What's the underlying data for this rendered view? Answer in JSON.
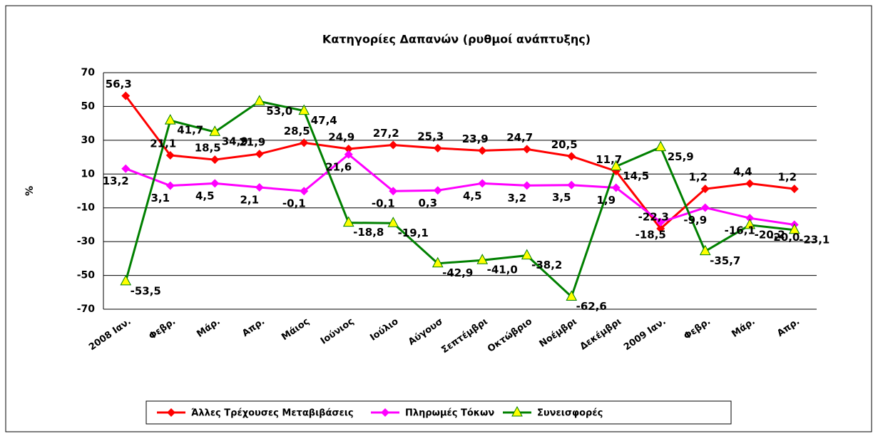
{
  "chart_data": {
    "type": "line",
    "title": "Κατηγορίες Δαπανών (ρυθμοί ανάπτυξης)",
    "y_label": "%",
    "categories": [
      "2008 Ιαν.",
      "Φεβρ.",
      "Μάρ.",
      "Απρ.",
      "Μάιος",
      "Ιούνιος",
      "Ιούλιο",
      "Αύγουσ",
      "Σεπτέμβρι",
      "Οκτώβριο",
      "Νοέμβρι",
      "Δεκέμβρι",
      "2009 Ιαν.",
      "Φεβρ.",
      "Μάρ.",
      "Απρ."
    ],
    "series": [
      {
        "name": "Άλλες Τρέχουσες Μεταβιβάσεις",
        "color": "#ff0000",
        "marker": "diamond",
        "marker_color": "#ff0000",
        "values": [
          56.3,
          21.1,
          18.5,
          21.9,
          28.5,
          24.9,
          27.2,
          25.3,
          23.9,
          24.7,
          20.5,
          11.7,
          -22.3,
          1.2,
          4.4,
          1.2
        ],
        "value_labels": [
          "56,3",
          "21,1",
          "18,5",
          "21,9",
          "28,5",
          "24,9",
          "27,2",
          "25,3",
          "23,9",
          "24,7",
          "20,5",
          "11,7",
          "-22,3",
          "1,2",
          "4,4",
          "1,2"
        ]
      },
      {
        "name": "Πληρωμές Τόκων",
        "color": "#ff00ff",
        "marker": "diamond",
        "marker_color": "#ff00ff",
        "values": [
          13.2,
          3.1,
          4.5,
          2.1,
          -0.1,
          21.6,
          -0.1,
          0.3,
          4.5,
          3.2,
          3.5,
          1.9,
          -18.5,
          -9.9,
          -16.1,
          -20.0
        ],
        "value_labels": [
          "13,2",
          "3,1",
          "4,5",
          "2,1",
          "-0,1",
          "21,6",
          "-0,1",
          "0,3",
          "4,5",
          "3,2",
          "3,5",
          "1,9",
          "-18,5",
          "-9,9",
          "-16,1",
          "-20,0"
        ]
      },
      {
        "name": "Συνεισφορές",
        "color": "#008000",
        "marker": "triangle",
        "marker_color": "#ffff00",
        "values": [
          -53.5,
          41.7,
          34.9,
          53.0,
          47.4,
          -18.8,
          -19.1,
          -42.9,
          -41.0,
          -38.2,
          -62.6,
          14.5,
          25.9,
          -35.7,
          -20.2,
          -23.1
        ],
        "value_labels": [
          "-53,5",
          "41,7",
          "34,9",
          "53,0",
          "47,4",
          "-18,8",
          "-19,1",
          "-42,9",
          "-41,0",
          "-38,2",
          "-62,6",
          "14,5",
          "25,9",
          "-35,7",
          "-20,2",
          "-23,1"
        ]
      }
    ],
    "ylim": [
      -70,
      70
    ],
    "yticks": [
      -70,
      -50,
      -30,
      -10,
      10,
      30,
      50,
      70
    ],
    "grid": true,
    "legend": "bottom"
  }
}
